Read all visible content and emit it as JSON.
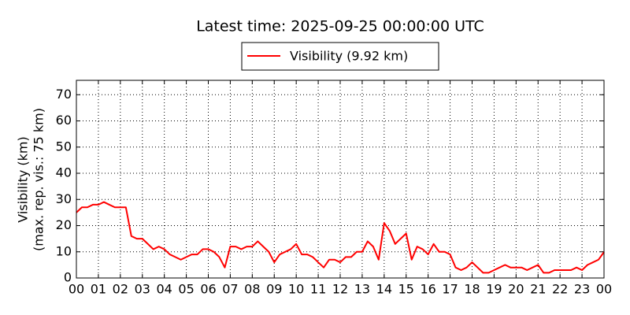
{
  "chart_data": {
    "type": "line",
    "title": "Latest time: 2025-09-25 00:00:00 UTC",
    "ylabel": [
      "Visibility (km)",
      "(max. rep. vis.: 75 km)"
    ],
    "x": [
      0,
      0.25,
      0.5,
      0.75,
      1,
      1.25,
      1.5,
      1.75,
      2,
      2.25,
      2.5,
      2.75,
      3,
      3.25,
      3.5,
      3.75,
      4,
      4.25,
      4.5,
      4.75,
      5,
      5.25,
      5.5,
      5.75,
      6,
      6.25,
      6.5,
      6.75,
      7,
      7.25,
      7.5,
      7.75,
      8,
      8.25,
      8.5,
      8.75,
      9,
      9.25,
      9.5,
      9.75,
      10,
      10.25,
      10.5,
      10.75,
      11,
      11.25,
      11.5,
      11.75,
      12,
      12.25,
      12.5,
      12.75,
      13,
      13.25,
      13.5,
      13.75,
      14,
      14.25,
      14.5,
      14.75,
      15,
      15.25,
      15.5,
      15.75,
      16,
      16.25,
      16.5,
      16.75,
      17,
      17.25,
      17.5,
      17.75,
      18,
      18.25,
      18.5,
      18.75,
      19,
      19.25,
      19.5,
      19.75,
      20,
      20.25,
      20.5,
      20.75,
      21,
      21.25,
      21.5,
      21.75,
      22,
      22.25,
      22.5,
      22.75,
      23,
      23.25,
      23.5,
      23.75,
      24
    ],
    "series": [
      {
        "name": "Visibility (9.92 km)",
        "color": "#ff0000",
        "values": [
          25,
          27,
          27,
          28,
          28,
          29,
          28,
          27,
          27,
          27,
          16,
          15,
          15,
          13,
          11,
          12,
          11,
          9,
          8,
          7,
          8,
          9,
          9,
          11,
          11,
          10,
          8,
          4,
          12,
          12,
          11,
          12,
          12,
          14,
          12,
          10,
          6,
          9,
          10,
          11,
          13,
          9,
          9,
          8,
          6,
          4,
          7,
          7,
          6,
          8,
          8,
          10,
          10,
          14,
          12,
          7,
          21,
          18,
          13,
          15,
          17,
          7,
          12,
          11,
          9,
          13,
          10,
          10,
          9,
          4,
          3,
          4,
          6,
          4,
          2,
          2,
          3,
          4,
          5,
          4,
          4,
          4,
          3,
          4,
          5,
          2,
          2,
          3,
          3,
          3,
          3,
          4,
          3,
          5,
          6,
          7,
          9.92
        ]
      }
    ],
    "xlim": [
      0,
      24
    ],
    "xticks": [
      {
        "value": 0,
        "label": "00"
      },
      {
        "value": 1,
        "label": "01"
      },
      {
        "value": 2,
        "label": "02"
      },
      {
        "value": 3,
        "label": "03"
      },
      {
        "value": 4,
        "label": "04"
      },
      {
        "value": 5,
        "label": "05"
      },
      {
        "value": 6,
        "label": "06"
      },
      {
        "value": 7,
        "label": "07"
      },
      {
        "value": 8,
        "label": "08"
      },
      {
        "value": 9,
        "label": "09"
      },
      {
        "value": 10,
        "label": "10"
      },
      {
        "value": 11,
        "label": "11"
      },
      {
        "value": 12,
        "label": "12"
      },
      {
        "value": 13,
        "label": "13"
      },
      {
        "value": 14,
        "label": "14"
      },
      {
        "value": 15,
        "label": "15"
      },
      {
        "value": 16,
        "label": "16"
      },
      {
        "value": 17,
        "label": "17"
      },
      {
        "value": 18,
        "label": "18"
      },
      {
        "value": 19,
        "label": "19"
      },
      {
        "value": 20,
        "label": "20"
      },
      {
        "value": 21,
        "label": "21"
      },
      {
        "value": 22,
        "label": "22"
      },
      {
        "value": 23,
        "label": "23"
      },
      {
        "value": 24,
        "label": "00"
      }
    ],
    "ylim": [
      0,
      75.5
    ],
    "yticks": [
      0,
      10,
      20,
      30,
      40,
      50,
      60,
      70
    ],
    "grid": true,
    "legend": "top"
  }
}
